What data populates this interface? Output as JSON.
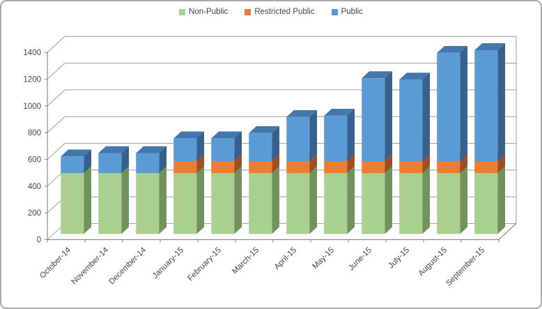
{
  "chart_data": {
    "type": "bar",
    "stacked": true,
    "projection": "3d",
    "title": "",
    "xlabel": "",
    "ylabel": "",
    "categories": [
      "October-14",
      "November-14",
      "December-14",
      "January-15",
      "February-15",
      "March-15",
      "April-15",
      "May-15",
      "June-15",
      "July-15",
      "August-15",
      "September-15"
    ],
    "series": [
      {
        "name": "Non-Public",
        "color": "#A9D08E",
        "top_color": "#8CB46C",
        "side_color": "#71935B",
        "values": [
          455,
          455,
          455,
          455,
          455,
          455,
          455,
          455,
          455,
          455,
          455,
          455
        ]
      },
      {
        "name": "Restricted Public",
        "color": "#ED7D31",
        "top_color": "#BF6423",
        "side_color": "#9E4E24",
        "values": [
          0,
          0,
          0,
          90,
          90,
          90,
          90,
          90,
          90,
          90,
          90,
          90
        ]
      },
      {
        "name": "Public",
        "color": "#5B9BD5",
        "top_color": "#4478AC",
        "side_color": "#36618E",
        "values": [
          125,
          150,
          150,
          170,
          170,
          210,
          330,
          340,
          620,
          610,
          810,
          830
        ]
      }
    ],
    "ylim": [
      0,
      1400
    ],
    "ytick_step": 200,
    "ytick_labels": [
      "0",
      "200",
      "400",
      "600",
      "800",
      "1000",
      "1200",
      "1400"
    ],
    "legend_position": "top",
    "grid": true,
    "grid_color": "#A6A6A6",
    "axis_color": "#8C8C8C",
    "label_color": "#454545"
  }
}
